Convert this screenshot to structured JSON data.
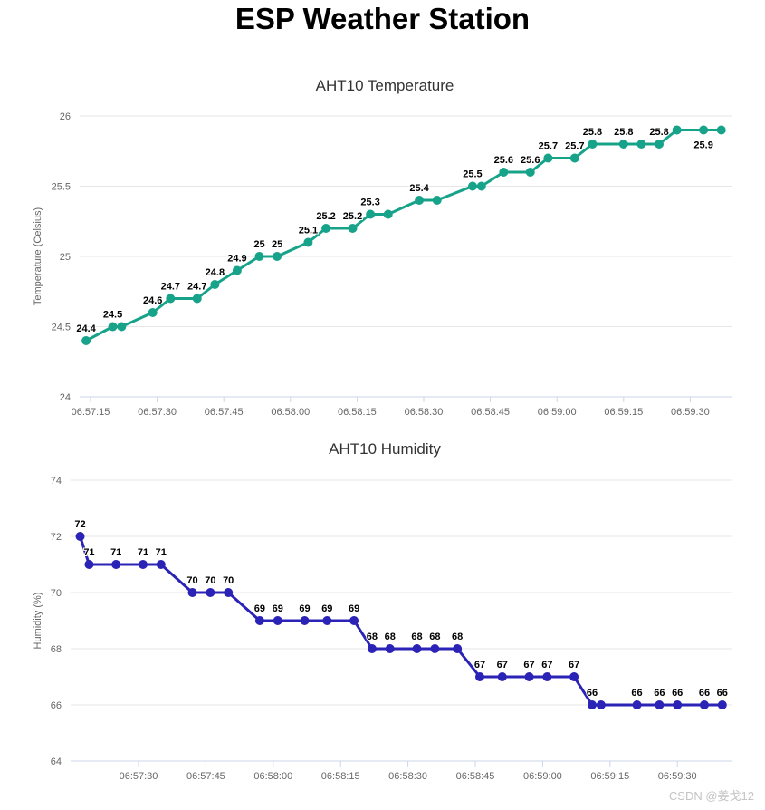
{
  "page_title": "ESP Weather Station",
  "watermark": "CSDN @姜戈12",
  "time_note": "t = seconds after 06:57:00, read from x-axis positions",
  "chart_data": [
    {
      "type": "line",
      "title": "AHT10 Temperature",
      "ylabel": "Temperature (Celsius)",
      "ylim": [
        24,
        26
      ],
      "grid": true,
      "legend": "none",
      "line_color": "#17a38a",
      "grid_color": "#e6e6e6",
      "axis_line_color": "#ccd6eb",
      "yticks": [
        {
          "v": 26,
          "label": "26"
        },
        {
          "v": 25.5,
          "label": "25.5"
        },
        {
          "v": 25,
          "label": "25"
        },
        {
          "v": 24.5,
          "label": "24.5"
        },
        {
          "v": 24,
          "label": "24"
        }
      ],
      "xticks": [
        {
          "t": 15,
          "label": "06:57:15"
        },
        {
          "t": 30,
          "label": "06:57:30"
        },
        {
          "t": 45,
          "label": "06:57:45"
        },
        {
          "t": 60,
          "label": "06:58:00"
        },
        {
          "t": 75,
          "label": "06:58:15"
        },
        {
          "t": 90,
          "label": "06:58:30"
        },
        {
          "t": 105,
          "label": "06:58:45"
        },
        {
          "t": 120,
          "label": "06:59:00"
        },
        {
          "t": 135,
          "label": "06:59:15"
        },
        {
          "t": 150,
          "label": "06:59:30"
        }
      ],
      "points": [
        {
          "t": 14,
          "v": 24.4,
          "label": "24.4"
        },
        {
          "t": 20,
          "v": 24.5,
          "label": "24.5"
        },
        {
          "t": 22,
          "v": 24.5,
          "label": null
        },
        {
          "t": 29,
          "v": 24.6,
          "label": "24.6"
        },
        {
          "t": 33,
          "v": 24.7,
          "label": "24.7"
        },
        {
          "t": 39,
          "v": 24.7,
          "label": "24.7"
        },
        {
          "t": 43,
          "v": 24.8,
          "label": "24.8"
        },
        {
          "t": 48,
          "v": 24.9,
          "label": "24.9"
        },
        {
          "t": 53,
          "v": 25,
          "label": "25"
        },
        {
          "t": 57,
          "v": 25,
          "label": "25"
        },
        {
          "t": 64,
          "v": 25.1,
          "label": "25.1"
        },
        {
          "t": 68,
          "v": 25.2,
          "label": "25.2"
        },
        {
          "t": 74,
          "v": 25.2,
          "label": "25.2"
        },
        {
          "t": 78,
          "v": 25.3,
          "label": "25.3"
        },
        {
          "t": 82,
          "v": 25.3,
          "label": null
        },
        {
          "t": 89,
          "v": 25.4,
          "label": "25.4"
        },
        {
          "t": 93,
          "v": 25.4,
          "label": null
        },
        {
          "t": 101,
          "v": 25.5,
          "label": "25.5"
        },
        {
          "t": 103,
          "v": 25.5,
          "label": null
        },
        {
          "t": 108,
          "v": 25.6,
          "label": "25.6"
        },
        {
          "t": 114,
          "v": 25.6,
          "label": "25.6"
        },
        {
          "t": 118,
          "v": 25.7,
          "label": "25.7"
        },
        {
          "t": 124,
          "v": 25.7,
          "label": "25.7"
        },
        {
          "t": 128,
          "v": 25.8,
          "label": "25.8"
        },
        {
          "t": 135,
          "v": 25.8,
          "label": "25.8"
        },
        {
          "t": 139,
          "v": 25.8,
          "label": null
        },
        {
          "t": 143,
          "v": 25.8,
          "label": "25.8"
        },
        {
          "t": 147,
          "v": 25.9,
          "label": null
        },
        {
          "t": 153,
          "v": 25.9,
          "label": "25.9",
          "label_pos": "below"
        },
        {
          "t": 157,
          "v": 25.9,
          "label": null
        }
      ]
    },
    {
      "type": "line",
      "title": "AHT10 Humidity",
      "ylabel": "Humidity (%)",
      "ylim": [
        64,
        74
      ],
      "grid": true,
      "legend": "none",
      "line_color": "#2a23b5",
      "grid_color": "#e6e6e6",
      "axis_line_color": "#ccd6eb",
      "yticks": [
        {
          "v": 74,
          "label": "74"
        },
        {
          "v": 72,
          "label": "72"
        },
        {
          "v": 70,
          "label": "70"
        },
        {
          "v": 68,
          "label": "68"
        },
        {
          "v": 66,
          "label": "66"
        },
        {
          "v": 64,
          "label": "64"
        }
      ],
      "xticks": [
        {
          "t": 30,
          "label": "06:57:30"
        },
        {
          "t": 45,
          "label": "06:57:45"
        },
        {
          "t": 60,
          "label": "06:58:00"
        },
        {
          "t": 75,
          "label": "06:58:15"
        },
        {
          "t": 90,
          "label": "06:58:30"
        },
        {
          "t": 105,
          "label": "06:58:45"
        },
        {
          "t": 120,
          "label": "06:59:00"
        },
        {
          "t": 135,
          "label": "06:59:15"
        },
        {
          "t": 150,
          "label": "06:59:30"
        }
      ],
      "points": [
        {
          "t": 17,
          "v": 72,
          "label": "72"
        },
        {
          "t": 19,
          "v": 71,
          "label": "71"
        },
        {
          "t": 25,
          "v": 71,
          "label": "71"
        },
        {
          "t": 31,
          "v": 71,
          "label": "71"
        },
        {
          "t": 35,
          "v": 71,
          "label": "71"
        },
        {
          "t": 42,
          "v": 70,
          "label": "70"
        },
        {
          "t": 46,
          "v": 70,
          "label": "70"
        },
        {
          "t": 50,
          "v": 70,
          "label": "70"
        },
        {
          "t": 57,
          "v": 69,
          "label": "69"
        },
        {
          "t": 61,
          "v": 69,
          "label": "69"
        },
        {
          "t": 67,
          "v": 69,
          "label": "69"
        },
        {
          "t": 72,
          "v": 69,
          "label": "69"
        },
        {
          "t": 78,
          "v": 69,
          "label": "69"
        },
        {
          "t": 82,
          "v": 68,
          "label": "68"
        },
        {
          "t": 86,
          "v": 68,
          "label": "68"
        },
        {
          "t": 92,
          "v": 68,
          "label": "68"
        },
        {
          "t": 96,
          "v": 68,
          "label": "68"
        },
        {
          "t": 101,
          "v": 68,
          "label": "68"
        },
        {
          "t": 106,
          "v": 67,
          "label": "67"
        },
        {
          "t": 111,
          "v": 67,
          "label": "67"
        },
        {
          "t": 117,
          "v": 67,
          "label": "67"
        },
        {
          "t": 121,
          "v": 67,
          "label": "67"
        },
        {
          "t": 127,
          "v": 67,
          "label": "67"
        },
        {
          "t": 131,
          "v": 66,
          "label": "66"
        },
        {
          "t": 133,
          "v": 66,
          "label": null
        },
        {
          "t": 141,
          "v": 66,
          "label": "66"
        },
        {
          "t": 146,
          "v": 66,
          "label": "66"
        },
        {
          "t": 150,
          "v": 66,
          "label": "66"
        },
        {
          "t": 156,
          "v": 66,
          "label": "66"
        },
        {
          "t": 160,
          "v": 66,
          "label": "66"
        }
      ]
    }
  ]
}
